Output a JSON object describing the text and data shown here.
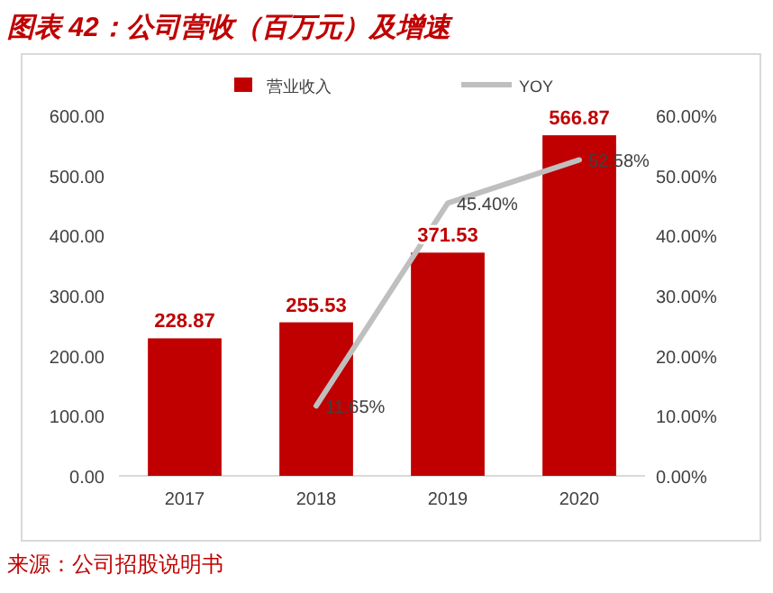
{
  "chart_data": {
    "type": "bar",
    "title": "图表 42：公司营收（百万元）及增速",
    "annotations": [
      "来源：公司招股说明书"
    ],
    "categories": [
      "2017",
      "2018",
      "2019",
      "2020"
    ],
    "series": [
      {
        "name": "营业收入",
        "color": "#c00000",
        "values": [
          228.87,
          255.53,
          371.53,
          566.87
        ],
        "value_labels": [
          "228.87",
          "255.53",
          "371.53",
          "566.87"
        ]
      },
      {
        "name": "YOY",
        "type": "line",
        "axis": "y2",
        "color": "#bfbfbf",
        "values": [
          null,
          11.65,
          45.4,
          52.58
        ],
        "value_labels": [
          null,
          "11.65%",
          "45.40%",
          "52.58%"
        ]
      }
    ],
    "ylim": [
      0,
      600
    ],
    "yticks": [
      {
        "value": 0,
        "label": "0.00"
      },
      {
        "value": 100,
        "label": "100.00"
      },
      {
        "value": 200,
        "label": "200.00"
      },
      {
        "value": 300,
        "label": "300.00"
      },
      {
        "value": 400,
        "label": "400.00"
      },
      {
        "value": 500,
        "label": "500.00"
      },
      {
        "value": 600,
        "label": "600.00"
      }
    ],
    "y2lim": [
      0,
      60
    ],
    "y2ticks": [
      {
        "value": 0,
        "label": "0.00%"
      },
      {
        "value": 10,
        "label": "10.00%"
      },
      {
        "value": 20,
        "label": "20.00%"
      },
      {
        "value": 30,
        "label": "30.00%"
      },
      {
        "value": 40,
        "label": "40.00%"
      },
      {
        "value": 50,
        "label": "50.00%"
      },
      {
        "value": 60,
        "label": "60.00%"
      }
    ],
    "legend": "top",
    "grid": false,
    "marker": "none"
  }
}
